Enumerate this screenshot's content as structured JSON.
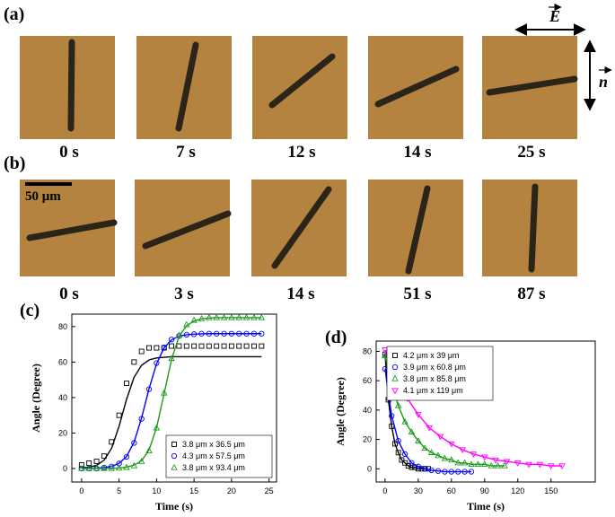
{
  "panels": [
    {
      "label": "(a)",
      "times": [
        "0 s",
        "7 s",
        "12 s",
        "14 s",
        "25 s"
      ]
    },
    {
      "label": "(b)",
      "times": [
        "0 s",
        "3 s",
        "14 s",
        "51 s",
        "87 s"
      ]
    }
  ],
  "field_labels": {
    "E": "E",
    "n": "n"
  },
  "scale_bar": "50 μm",
  "chart_data": [
    {
      "type": "scatter",
      "label": "(c)",
      "x_label": "Time (s)",
      "y_label": "Angle (Degree)",
      "xlim": [
        -1.3,
        26
      ],
      "ylim": [
        -7.6,
        87
      ],
      "xticks": [
        0,
        5,
        10,
        15,
        20,
        25
      ],
      "yticks": [
        0,
        20,
        40,
        60,
        80
      ],
      "legend": "lower right",
      "x": [
        0,
        1,
        2,
        3,
        4,
        5,
        6,
        7,
        8,
        9,
        10,
        11,
        12,
        13,
        14,
        15,
        16,
        17,
        18,
        19,
        20,
        21,
        22,
        23,
        24
      ],
      "series": [
        {
          "name": "3.8 μm x 36.5 μm",
          "color": "#000000",
          "marker": "square",
          "values": [
            2,
            3,
            4,
            7,
            15,
            30,
            48,
            60,
            66,
            68,
            68,
            68,
            69,
            69,
            69,
            69,
            69,
            69,
            69,
            69,
            69,
            69,
            69,
            69,
            69
          ],
          "fit": [
            0.3,
            0.7,
            1.8,
            4.7,
            11.4,
            23.8,
            39,
            51.4,
            58.2,
            61.2,
            62.3,
            62.7,
            63,
            63,
            63,
            63,
            63,
            63,
            63,
            63,
            63,
            63,
            63,
            63,
            63
          ]
        },
        {
          "name": "4.3 μm x 57.5 μm",
          "color": "#0000ff",
          "marker": "circle",
          "values": [
            0,
            0,
            0,
            0.5,
            1.1,
            2.8,
            6.6,
            14.4,
            28,
            44.7,
            59.4,
            68.3,
            72.7,
            74.7,
            75.4,
            75.7,
            76,
            76,
            76,
            76,
            76,
            76,
            76,
            76,
            76
          ],
          "fit": [
            0,
            0,
            0.2,
            0.5,
            1.2,
            2.9,
            6.8,
            14.8,
            28.5,
            45,
            59,
            68,
            72.5,
            74.6,
            75.4,
            75.7,
            75.9,
            76,
            76,
            76,
            76,
            76,
            76,
            76,
            76
          ]
        },
        {
          "name": "3.8 μm x 93.4 μm",
          "color": "#1a9b1a",
          "marker": "triangle",
          "values": [
            0,
            0,
            0,
            0,
            0,
            0.2,
            0.6,
            1.5,
            4,
            10,
            22.8,
            42.5,
            62,
            75,
            81,
            83.5,
            84.4,
            85,
            85,
            85,
            85,
            85,
            85,
            85,
            85
          ],
          "fit": [
            0,
            0,
            0,
            0,
            0.1,
            0.3,
            0.8,
            1.9,
            4.3,
            10.5,
            23,
            42,
            61.5,
            74.5,
            80.5,
            83.2,
            84.3,
            84.8,
            85,
            85,
            85,
            85,
            85,
            85,
            85
          ]
        }
      ]
    },
    {
      "type": "scatter",
      "label": "(d)",
      "x_label": "Time (s)",
      "y_label": "Angle (Degree)",
      "xlim": [
        -8,
        190
      ],
      "ylim": [
        -9,
        87
      ],
      "xticks": [
        0,
        30,
        60,
        90,
        120,
        150
      ],
      "yticks": [
        0,
        20,
        40,
        60,
        80
      ],
      "legend": "upper left",
      "connect": true,
      "series": [
        {
          "name": "4.2 μm x 39 μm",
          "color": "#000000",
          "marker": "square",
          "x": [
            0,
            3,
            6,
            9,
            12,
            15,
            18,
            21,
            24,
            27,
            30,
            33,
            36,
            39
          ],
          "values": [
            78,
            47,
            29,
            17,
            11,
            6,
            4,
            2,
            1,
            1,
            0,
            0,
            0,
            0
          ]
        },
        {
          "name": "3.9 μm x 60.8 μm",
          "color": "#0000ff",
          "marker": "circle",
          "x": [
            0,
            6,
            12,
            18,
            24,
            30,
            36,
            42,
            48,
            54,
            60,
            66,
            72,
            78
          ],
          "values": [
            68,
            36,
            19,
            10,
            4,
            1.5,
            0,
            -1,
            -1.5,
            -2,
            -2,
            -2,
            -2,
            -2
          ]
        },
        {
          "name": "3.8 μm x 85.8 μm",
          "color": "#1a9b1a",
          "marker": "triangle",
          "x": [
            0,
            6,
            12,
            18,
            24,
            30,
            36,
            42,
            48,
            54,
            60,
            66,
            72,
            78,
            84,
            90,
            96,
            102,
            108
          ],
          "values": [
            77,
            58,
            43,
            32,
            25,
            19,
            14,
            11,
            9,
            7,
            6,
            4,
            4,
            3,
            3,
            3,
            2,
            2,
            2
          ]
        },
        {
          "name": "4.1 μm x 119 μm",
          "color": "#ff00ff",
          "marker": "down-triangle",
          "x": [
            0,
            10,
            20,
            30,
            40,
            50,
            60,
            70,
            80,
            90,
            100,
            110,
            120,
            130,
            140,
            150,
            160
          ],
          "values": [
            81,
            62,
            48,
            37,
            28,
            22,
            17,
            13,
            10,
            8,
            6,
            5,
            4,
            3,
            3,
            2,
            2
          ]
        }
      ]
    }
  ]
}
